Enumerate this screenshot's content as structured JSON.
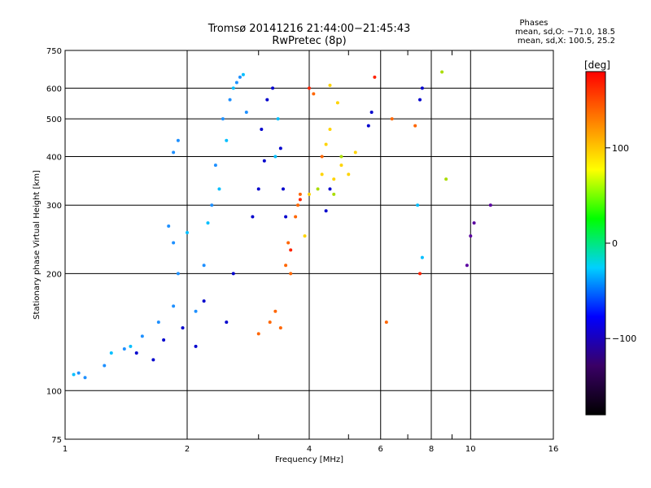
{
  "header": {
    "title_line1": "Tromsø 20141216 21:44:00−21:45:43",
    "title_line2": "RwPretec (8p)"
  },
  "phases": {
    "heading": "Phases",
    "line_o": "mean, sd,O: −71.0, 18.5",
    "line_x": "mean, sd,X: 100.5, 25.2"
  },
  "colorbar": {
    "unit": "[deg]",
    "ticks": [
      "100",
      "0",
      "−100"
    ],
    "tick_values": [
      100,
      0,
      -100
    ],
    "range": [
      -180,
      180
    ],
    "colors": [
      "#000000",
      "#3a0066",
      "#0000ff",
      "#00d0ff",
      "#00ff00",
      "#ffff00",
      "#ff8000",
      "#ff0000"
    ]
  },
  "chart_data": {
    "type": "scatter",
    "xlabel": "Frequency [MHz]",
    "ylabel": "Stationary phase Virtual Height [km]",
    "xscale": "log",
    "yscale": "log",
    "xlim": [
      1,
      16
    ],
    "ylim": [
      75,
      750
    ],
    "grid": true,
    "x_ticks": [
      1,
      2,
      4,
      6,
      8,
      10,
      16
    ],
    "x_tick_labels": [
      "1",
      "2",
      "4",
      "6",
      "8",
      "10",
      "16"
    ],
    "y_ticks": [
      75,
      100,
      200,
      300,
      400,
      500,
      600,
      750
    ],
    "y_tick_labels": [
      "75",
      "100",
      "200",
      "300",
      "400",
      "500",
      "600",
      "750"
    ],
    "series": [
      {
        "color": "#1e90ff",
        "points": [
          [
            1.08,
            111
          ],
          [
            1.12,
            108
          ],
          [
            1.25,
            116
          ],
          [
            1.4,
            128
          ],
          [
            1.55,
            138
          ],
          [
            1.7,
            150
          ],
          [
            1.85,
            165
          ],
          [
            1.9,
            200
          ],
          [
            1.85,
            240
          ],
          [
            1.8,
            265
          ],
          [
            1.85,
            410
          ],
          [
            1.9,
            440
          ],
          [
            2.1,
            160
          ],
          [
            2.2,
            210
          ],
          [
            2.3,
            300
          ],
          [
            2.35,
            380
          ],
          [
            2.45,
            500
          ],
          [
            2.55,
            560
          ],
          [
            2.65,
            620
          ],
          [
            2.7,
            640
          ],
          [
            2.8,
            520
          ]
        ]
      },
      {
        "color": "#0000cd",
        "points": [
          [
            1.5,
            125
          ],
          [
            1.65,
            120
          ],
          [
            1.75,
            135
          ],
          [
            1.95,
            145
          ],
          [
            2.1,
            130
          ],
          [
            2.2,
            170
          ],
          [
            2.5,
            150
          ],
          [
            2.6,
            200
          ],
          [
            2.9,
            280
          ],
          [
            3.0,
            330
          ],
          [
            3.1,
            390
          ],
          [
            3.05,
            470
          ],
          [
            3.15,
            560
          ],
          [
            3.25,
            600
          ],
          [
            3.4,
            420
          ],
          [
            3.45,
            330
          ],
          [
            3.5,
            280
          ],
          [
            4.4,
            290
          ],
          [
            4.5,
            330
          ],
          [
            5.6,
            480
          ],
          [
            5.7,
            520
          ],
          [
            7.5,
            560
          ],
          [
            7.6,
            600
          ]
        ]
      },
      {
        "color": "#00bfff",
        "points": [
          [
            1.05,
            110
          ],
          [
            1.3,
            125
          ],
          [
            1.45,
            130
          ],
          [
            2.0,
            255
          ],
          [
            2.25,
            270
          ],
          [
            2.4,
            330
          ],
          [
            2.5,
            440
          ],
          [
            2.6,
            600
          ],
          [
            2.75,
            650
          ],
          [
            3.3,
            400
          ],
          [
            3.35,
            500
          ],
          [
            7.4,
            300
          ],
          [
            7.6,
            220
          ]
        ]
      },
      {
        "color": "#ff6600",
        "points": [
          [
            3.0,
            140
          ],
          [
            3.2,
            150
          ],
          [
            3.3,
            160
          ],
          [
            3.4,
            145
          ],
          [
            3.5,
            210
          ],
          [
            3.6,
            200
          ],
          [
            3.55,
            240
          ],
          [
            3.7,
            280
          ],
          [
            3.75,
            300
          ],
          [
            3.8,
            320
          ],
          [
            4.1,
            580
          ],
          [
            4.3,
            400
          ],
          [
            6.2,
            150
          ],
          [
            6.4,
            500
          ],
          [
            7.3,
            480
          ]
        ]
      },
      {
        "color": "#ff2200",
        "points": [
          [
            3.6,
            230
          ],
          [
            3.8,
            310
          ],
          [
            4.0,
            600
          ],
          [
            5.8,
            640
          ],
          [
            7.5,
            200
          ]
        ]
      },
      {
        "color": "#ffd400",
        "points": [
          [
            3.9,
            250
          ],
          [
            4.0,
            320
          ],
          [
            4.3,
            360
          ],
          [
            4.4,
            430
          ],
          [
            4.5,
            470
          ],
          [
            4.6,
            350
          ],
          [
            4.8,
            380
          ],
          [
            5.0,
            360
          ],
          [
            5.2,
            410
          ],
          [
            4.5,
            610
          ],
          [
            4.7,
            550
          ]
        ]
      },
      {
        "color": "#aadd00",
        "points": [
          [
            4.2,
            330
          ],
          [
            4.6,
            320
          ],
          [
            4.8,
            400
          ],
          [
            8.5,
            660
          ],
          [
            8.7,
            350
          ]
        ]
      },
      {
        "color": "#5a00a0",
        "points": [
          [
            10.2,
            270
          ],
          [
            10.0,
            250
          ],
          [
            9.8,
            210
          ],
          [
            11.2,
            300
          ]
        ]
      }
    ]
  }
}
